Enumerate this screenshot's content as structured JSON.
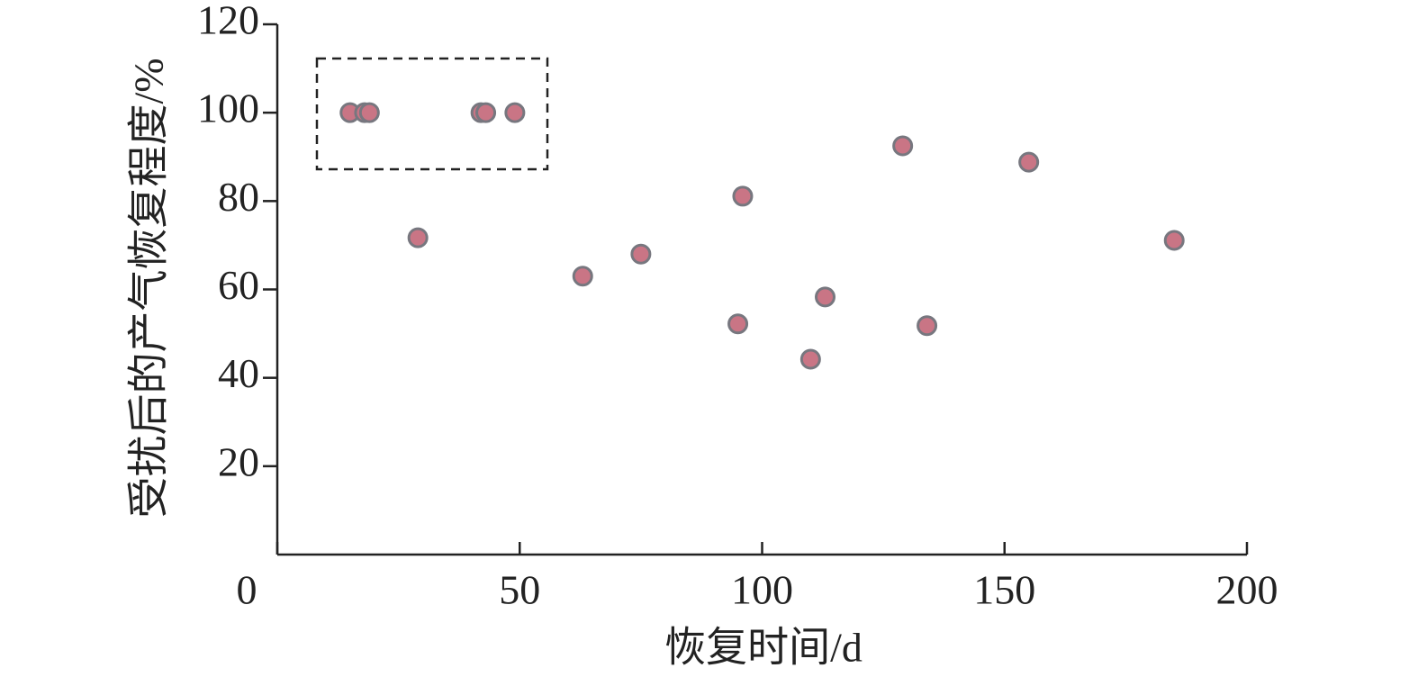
{
  "chart_data": {
    "type": "scatter",
    "x_label": "恢复时间/d",
    "y_label": "受扰后的产气恢复程度/%",
    "x": [
      15,
      18,
      19,
      42,
      43,
      49,
      29,
      63,
      75,
      95,
      96,
      110,
      113,
      129,
      134,
      155,
      185
    ],
    "values": [
      100,
      100,
      100,
      100,
      100,
      100,
      71.7,
      63,
      68,
      52.2,
      81.1,
      44.2,
      58.3,
      92.5,
      51.8,
      88.8,
      71.1
    ],
    "color": "#c97585",
    "edge_color": "#77777f",
    "xlim": [
      0,
      200
    ],
    "xticks": [
      0,
      50,
      100,
      150,
      200
    ],
    "ylim": [
      0,
      120
    ],
    "yticks": [
      20,
      40,
      60,
      80,
      100,
      120
    ]
  }
}
